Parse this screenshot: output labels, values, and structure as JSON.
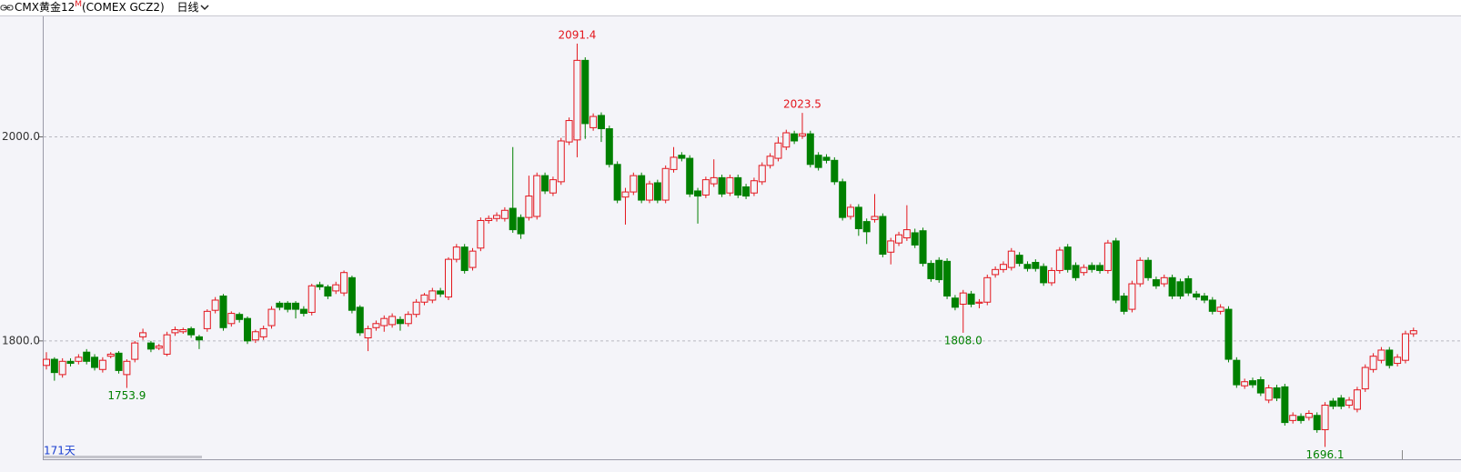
{
  "chart_data": {
    "type": "candlestick",
    "title": "CMX黄金12",
    "title_sup": "M",
    "subtitle": "(COMEX GCZ2)",
    "period": "日线",
    "count_label": "171天",
    "up_color": "#e3161d",
    "down_color": "#008000",
    "ylim": [
      1684,
      2119
    ],
    "yticks": [
      {
        "value": 1800,
        "label": "1800.0"
      },
      {
        "value": 2000,
        "label": "2000.0"
      }
    ],
    "grid": true,
    "open": [
      1776,
      1782,
      1767,
      1780,
      1780,
      1789,
      1784,
      1772,
      1785,
      1788,
      1767,
      1782,
      1804,
      1798,
      1793,
      1787,
      1808,
      1809,
      1812,
      1804,
      1812,
      1830,
      1844,
      1817,
      1826,
      1822,
      1801,
      1804,
      1815,
      1837,
      1837,
      1837,
      1831,
      1828,
      1855,
      1853,
      1849,
      1847,
      1862,
      1833,
      1803,
      1813,
      1815,
      1816,
      1821,
      1817,
      1826,
      1838,
      1840,
      1849,
      1843,
      1880,
      1892,
      1872,
      1891,
      1918,
      1920,
      1920,
      1930,
      1921,
      1921,
      1922,
      1962,
      1945,
      1956,
      1995,
      1997,
      2075,
      2009,
      2021,
      2008,
      1973,
      1941,
      1946,
      1962,
      1938,
      1955,
      1938,
      1968,
      1982,
      1979,
      1947,
      1943,
      1954,
      1960,
      1945,
      1960,
      1951,
      1945,
      1956,
      1972,
      1979,
      1990,
      2003,
      2001,
      2003,
      1982,
      1980,
      1977,
      1956,
      1922,
      1931,
      1917,
      1919,
      1922,
      1887,
      1896,
      1901,
      1906,
      1908,
      1876,
      1879,
      1878,
      1842,
      1836,
      1846,
      1837,
      1838,
      1865,
      1870,
      1872,
      1884,
      1875,
      1877,
      1873,
      1857,
      1869,
      1892,
      1874,
      1867,
      1874,
      1874,
      1869,
      1898,
      1844,
      1831,
      1856,
      1879,
      1860,
      1856,
      1862,
      1858,
      1861,
      1846,
      1844,
      1840,
      1829,
      1831,
      1781,
      1756,
      1761,
      1762,
      1742,
      1754,
      1755,
      1722,
      1726,
      1725,
      1727,
      1713,
      1741,
      1744,
      1737,
      1733,
      1753,
      1772,
      1781,
      1791,
      1778,
      1781,
      1807
    ],
    "high": [
      1789,
      1784,
      1783,
      1783,
      1787,
      1792,
      1787,
      1784,
      1789,
      1790,
      1782,
      1800,
      1812,
      1800,
      1797,
      1809,
      1814,
      1813,
      1814,
      1806,
      1831,
      1843,
      1846,
      1829,
      1828,
      1824,
      1811,
      1815,
      1834,
      1839,
      1839,
      1839,
      1834,
      1856,
      1858,
      1855,
      1858,
      1869,
      1864,
      1835,
      1815,
      1820,
      1825,
      1827,
      1824,
      1829,
      1841,
      1847,
      1852,
      1852,
      1882,
      1895,
      1895,
      1891,
      1921,
      1923,
      1926,
      1931,
      1990,
      1924,
      1962,
      1965,
      1965,
      1961,
      1999,
      2019,
      2091.4,
      2078,
      2023,
      2024,
      2011,
      1976,
      1950,
      1965,
      1965,
      1957,
      1958,
      1972,
      1990,
      1985,
      1982,
      1950,
      1961,
      1978,
      1963,
      1963,
      1963,
      1954,
      1960,
      1975,
      1984,
      2000,
      2007,
      2006,
      2023.5,
      2006,
      1985,
      1983,
      1980,
      1959,
      1934,
      1934,
      1920,
      1944,
      1925,
      1901,
      1907,
      1933,
      1910,
      1911,
      1879,
      1882,
      1881,
      1845,
      1850,
      1849,
      1841,
      1865,
      1873,
      1878,
      1891,
      1887,
      1878,
      1880,
      1876,
      1872,
      1892,
      1895,
      1877,
      1875,
      1877,
      1877,
      1899,
      1901,
      1847,
      1859,
      1882,
      1882,
      1863,
      1865,
      1865,
      1861,
      1864,
      1849,
      1847,
      1843,
      1836,
      1834,
      1784,
      1763,
      1764,
      1765,
      1757,
      1757,
      1758,
      1730,
      1729,
      1732,
      1730,
      1740,
      1744,
      1747,
      1745,
      1755,
      1777,
      1788,
      1794,
      1794,
      1787,
      1810,
      1813
    ],
    "low": [
      1772,
      1761,
      1764,
      1775,
      1777,
      1777,
      1771,
      1769,
      1783,
      1768,
      1753.9,
      1779,
      1801,
      1789,
      1791,
      1785,
      1805,
      1807,
      1803,
      1792,
      1809,
      1827,
      1810,
      1814,
      1818,
      1797,
      1798,
      1801,
      1812,
      1830,
      1828,
      1822,
      1824,
      1825,
      1850,
      1841,
      1846,
      1844,
      1827,
      1805,
      1790,
      1810,
      1809,
      1813,
      1810,
      1814,
      1823,
      1835,
      1837,
      1843,
      1840,
      1877,
      1866,
      1869,
      1888,
      1915,
      1917,
      1917,
      1906,
      1900,
      1918,
      1919,
      1944,
      1942,
      1953,
      1992,
      1980,
      1998,
      2006,
      1995,
      1970,
      1935,
      1914,
      1943,
      1935,
      1935,
      1935,
      1935,
      1965,
      1976,
      1941,
      1915,
      1940,
      1951,
      1941,
      1942,
      1940,
      1939,
      1942,
      1953,
      1969,
      1976,
      1987,
      1993,
      1998,
      1970,
      1967,
      1974,
      1953,
      1918,
      1919,
      1903,
      1895,
      1916,
      1882,
      1875,
      1893,
      1898,
      1891,
      1873,
      1858,
      1857,
      1841,
      1830,
      1808,
      1833,
      1832,
      1835,
      1862,
      1867,
      1869,
      1873,
      1868,
      1868,
      1854,
      1854,
      1866,
      1867,
      1859,
      1864,
      1867,
      1866,
      1866,
      1837,
      1826,
      1828,
      1853,
      1859,
      1851,
      1853,
      1841,
      1841,
      1844,
      1840,
      1837,
      1826,
      1826,
      1779,
      1754,
      1753,
      1754,
      1746,
      1739,
      1741,
      1717,
      1719,
      1719,
      1722,
      1710,
      1696.1,
      1733,
      1733,
      1734,
      1730,
      1750,
      1769,
      1778,
      1773,
      1775,
      1778,
      1804
    ],
    "close": [
      1782,
      1769,
      1780,
      1778,
      1784,
      1780,
      1774,
      1781,
      1787,
      1771,
      1780,
      1798,
      1808,
      1792,
      1795,
      1806,
      1811,
      1811,
      1806,
      1801,
      1829,
      1840,
      1813,
      1827,
      1821,
      1800,
      1809,
      1812,
      1831,
      1833,
      1831,
      1831,
      1827,
      1854,
      1853,
      1844,
      1855,
      1867,
      1830,
      1808,
      1812,
      1817,
      1822,
      1824,
      1817,
      1826,
      1838,
      1845,
      1849,
      1846,
      1880,
      1892,
      1869,
      1888,
      1918,
      1920,
      1923,
      1928,
      1909,
      1905,
      1942,
      1962,
      1947,
      1958,
      1996,
      2016,
      2075,
      2013,
      2020,
      2008,
      1973,
      1938,
      1946,
      1962,
      1938,
      1954,
      1938,
      1969,
      1980,
      1979,
      1944,
      1942,
      1958,
      1960,
      1944,
      1960,
      1943,
      1942,
      1957,
      1972,
      1981,
      1994,
      2004,
      1996,
      2003,
      1973,
      1970,
      1977,
      1956,
      1921,
      1931,
      1910,
      1907,
      1922,
      1885,
      1898,
      1904,
      1909,
      1894,
      1876,
      1861,
      1860,
      1844,
      1833,
      1847,
      1836,
      1838,
      1862,
      1870,
      1875,
      1888,
      1876,
      1871,
      1871,
      1857,
      1869,
      1889,
      1870,
      1862,
      1872,
      1870,
      1869,
      1896,
      1840,
      1829,
      1856,
      1879,
      1862,
      1854,
      1862,
      1844,
      1844,
      1847,
      1843,
      1840,
      1829,
      1833,
      1782,
      1757,
      1760,
      1757,
      1749,
      1754,
      1744,
      1720,
      1727,
      1722,
      1729,
      1713,
      1737,
      1736,
      1736,
      1742,
      1752,
      1774,
      1785,
      1791,
      1776,
      1784,
      1807,
      1810
    ],
    "annotations": [
      {
        "value": 1753.9,
        "label": "1753.9"
      },
      {
        "value": 2091.4,
        "label": "2091.4"
      },
      {
        "value": 2023.5,
        "label": "2023.5"
      },
      {
        "value": 1808,
        "label": "1808.0"
      },
      {
        "value": 1696.1,
        "label": "1696.1"
      }
    ]
  }
}
